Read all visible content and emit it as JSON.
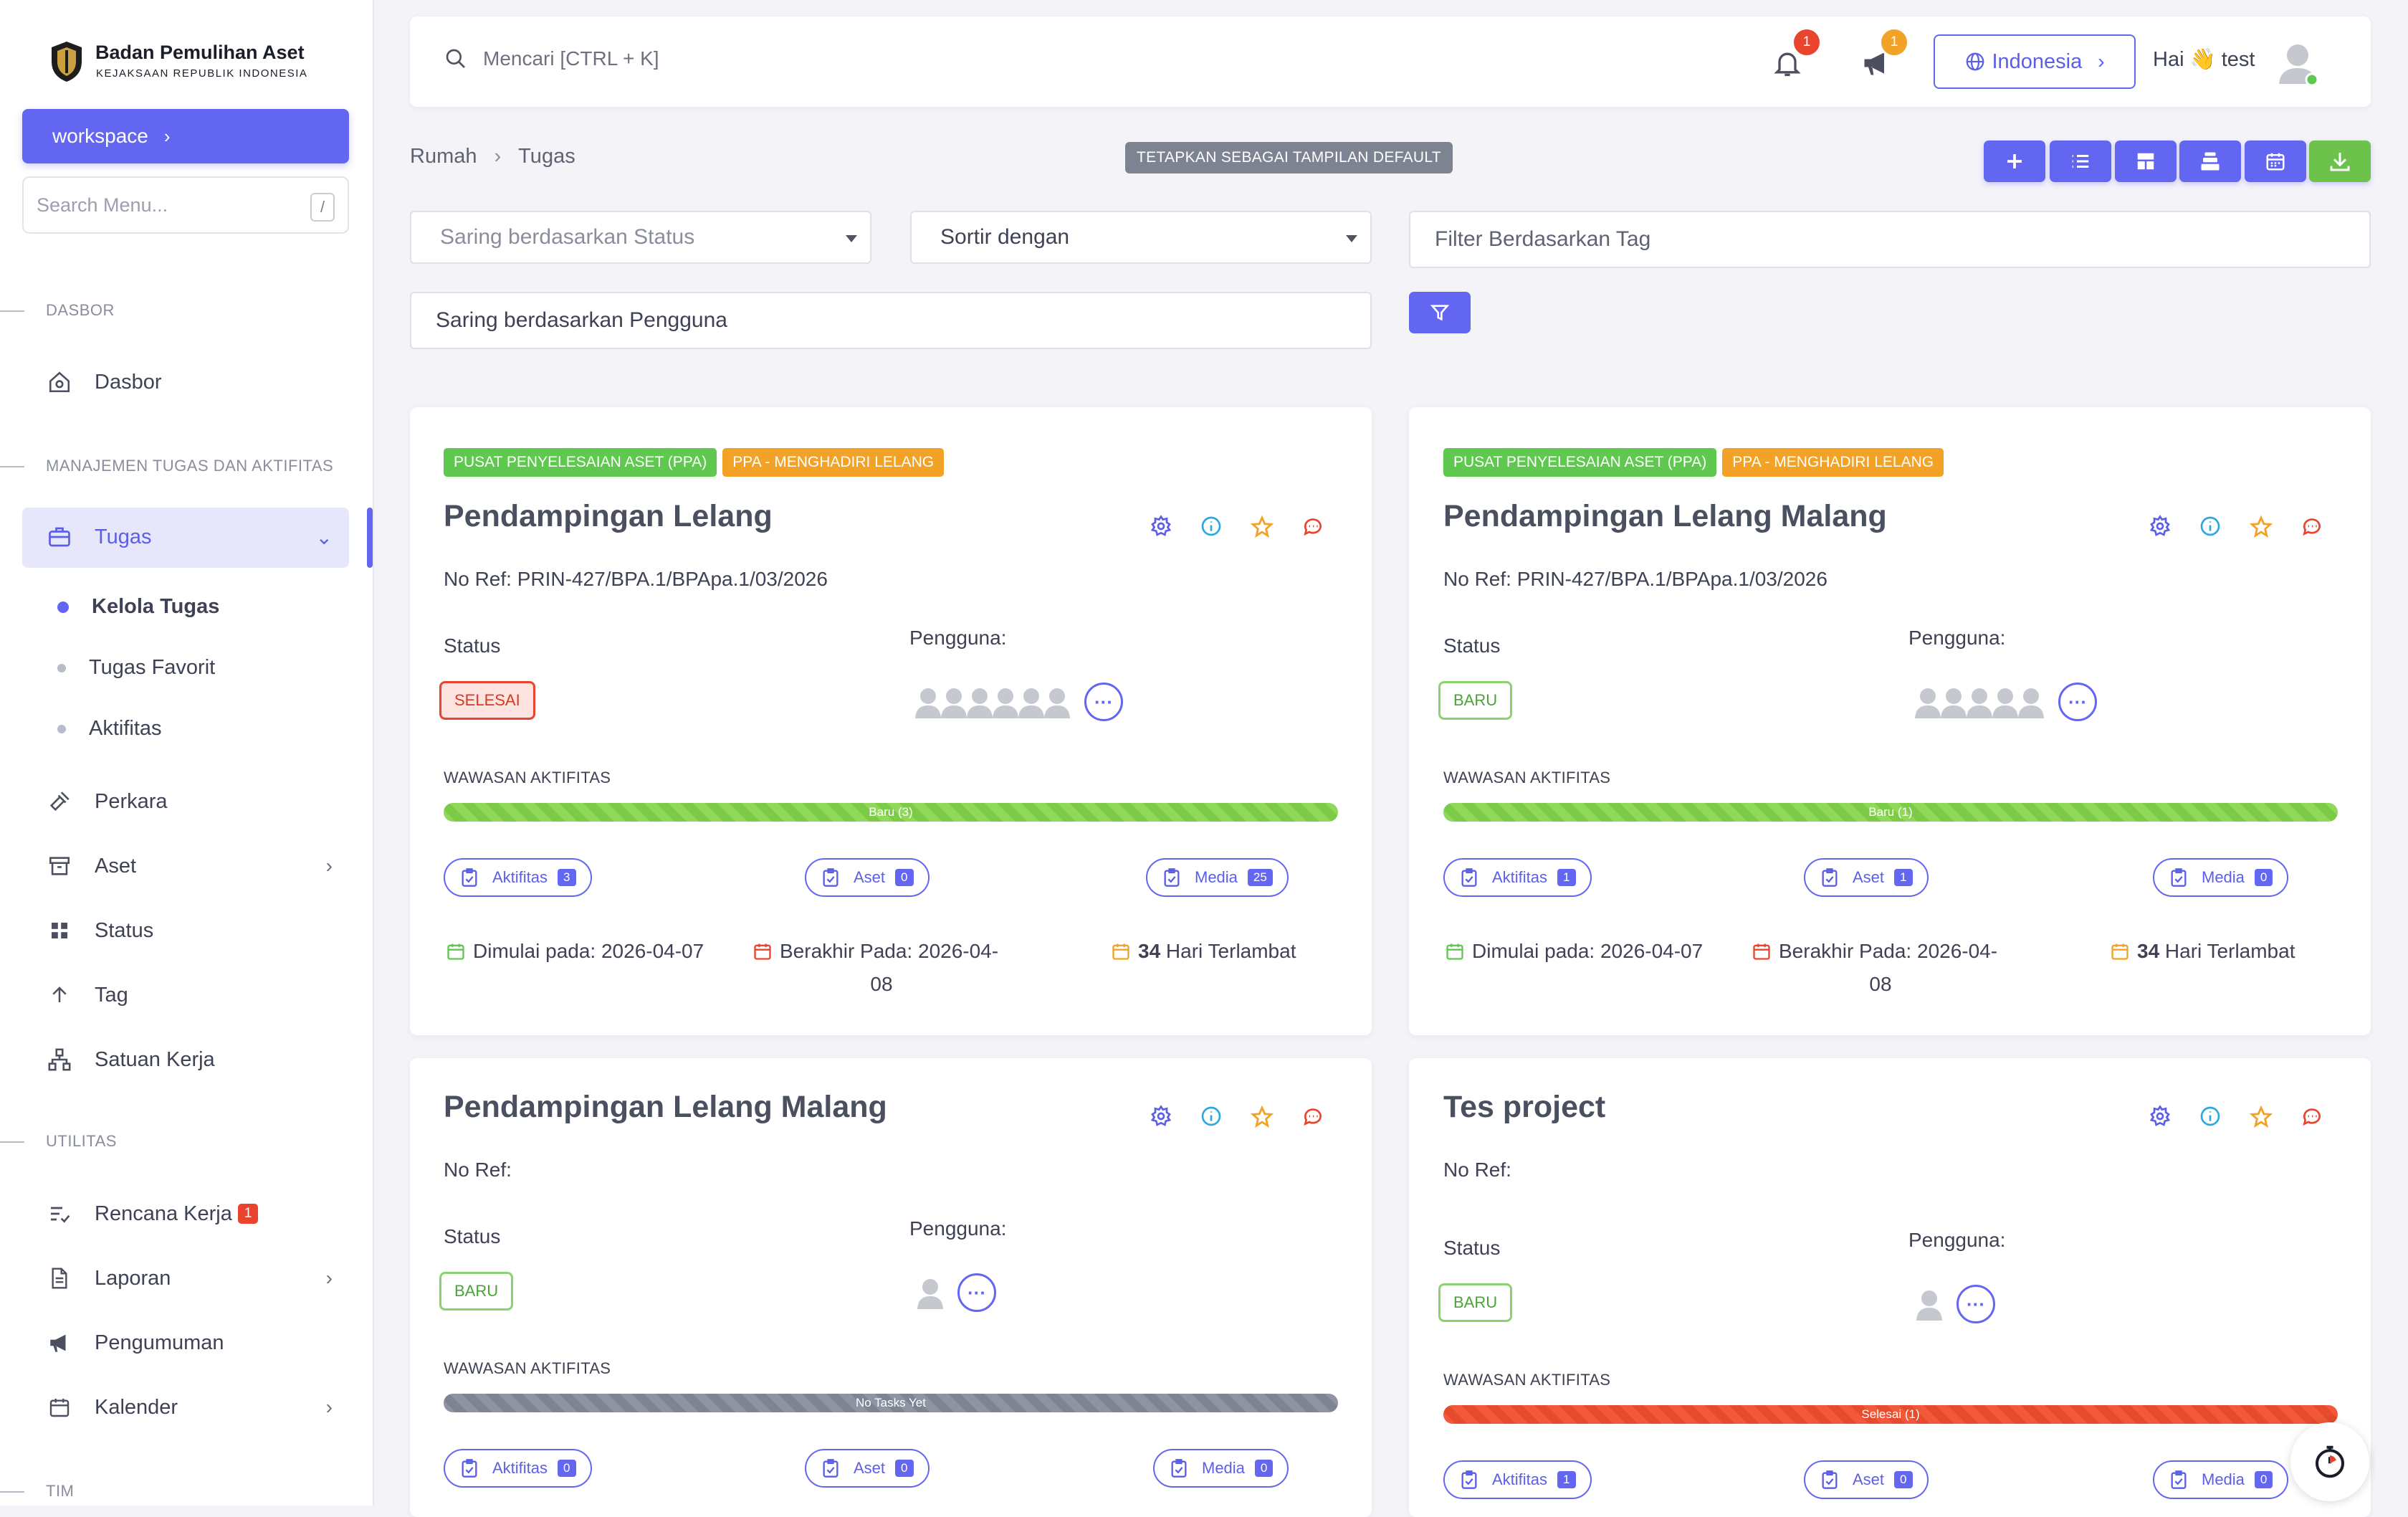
{
  "brand": {
    "title": "Badan Pemulihan Aset",
    "subtitle": "KEJAKSAAN REPUBLIK INDONESIA"
  },
  "sidebar": {
    "workspace_label": "workspace",
    "search_placeholder": "Search Menu...",
    "search_shortcut": "/",
    "sections": [
      "DASBOR",
      "MANAJEMEN TUGAS DAN AKTIFITAS",
      "UTILITAS",
      "TIM"
    ],
    "items": {
      "dasbor": "Dasbor",
      "tugas": "Tugas",
      "kelola_tugas": "Kelola Tugas",
      "tugas_favorit": "Tugas Favorit",
      "aktifitas": "Aktifitas",
      "perkara": "Perkara",
      "aset": "Aset",
      "status": "Status",
      "tag": "Tag",
      "satuan_kerja": "Satuan Kerja",
      "rencana_kerja": "Rencana Kerja",
      "rencana_kerja_badge": "1",
      "laporan": "Laporan",
      "pengumuman": "Pengumuman",
      "kalender": "Kalender"
    }
  },
  "topbar": {
    "search_placeholder": "Mencari [CTRL + K]",
    "notif_count": "1",
    "announce_count": "1",
    "language": "Indonesia",
    "greeting": "Hai 👋 test"
  },
  "breadcrumb": [
    "Rumah",
    "Tugas"
  ],
  "default_view_label": "TETAPKAN SEBAGAI TAMPILAN DEFAULT",
  "filters": {
    "status_placeholder": "Saring berdasarkan Status",
    "sort_label": "Sortir dengan",
    "tag_placeholder": "Filter Berdasarkan Tag",
    "user_placeholder": "Saring berdasarkan Pengguna"
  },
  "labels": {
    "status": "Status",
    "users": "Pengguna:",
    "insight": "WAWASAN AKTIFITAS",
    "aktifitas": "Aktifitas",
    "aset": "Aset",
    "media": "Media"
  },
  "cards": [
    {
      "tags": [
        "PUSAT PENYELESAIAN ASET (PPA)",
        "PPA - MENGHADIRI LELANG"
      ],
      "title": "Pendampingan Lelang",
      "ref": "No Ref: PRIN-427/BPA.1/BPApa.1/03/2026",
      "status": "SELESAI",
      "progress_label": "Baru (3)",
      "progress_value": 1.0,
      "counts": {
        "aktifitas": "3",
        "aset": "0",
        "media": "25"
      },
      "start": "Dimulai pada: 2026-04-07",
      "end_line1": "Berakhir Pada: 2026-04-",
      "end_line2": "08",
      "late_days": "34",
      "late_text": " Hari Terlambat"
    },
    {
      "tags": [
        "PUSAT PENYELESAIAN ASET (PPA)",
        "PPA - MENGHADIRI LELANG"
      ],
      "title": "Pendampingan Lelang Malang",
      "ref": "No Ref: PRIN-427/BPA.1/BPApa.1/03/2026",
      "status": "BARU",
      "progress_label": "Baru (1)",
      "progress_value": 1.0,
      "counts": {
        "aktifitas": "1",
        "aset": "1",
        "media": "0"
      },
      "start": "Dimulai pada: 2026-04-07",
      "end_line1": "Berakhir Pada: 2026-04-",
      "end_line2": "08",
      "late_days": "34",
      "late_text": " Hari Terlambat"
    },
    {
      "title": "Pendampingan Lelang Malang",
      "ref": "No Ref:",
      "status": "BARU",
      "progress_label": "No Tasks Yet",
      "progress_value": 1.0,
      "counts": {
        "aktifitas": "0",
        "aset": "0",
        "media": "0"
      }
    },
    {
      "title": "Tes project",
      "ref": "No Ref:",
      "status": "BARU",
      "progress_label": "Selesai (1)",
      "progress_value": 1.0,
      "counts": {
        "aktifitas": "1",
        "aset": "0",
        "media": "0"
      }
    }
  ],
  "colors": {
    "accent": "#6366f1",
    "success": "#5fc84f",
    "warning": "#f2a227",
    "danger": "#e8442e"
  }
}
